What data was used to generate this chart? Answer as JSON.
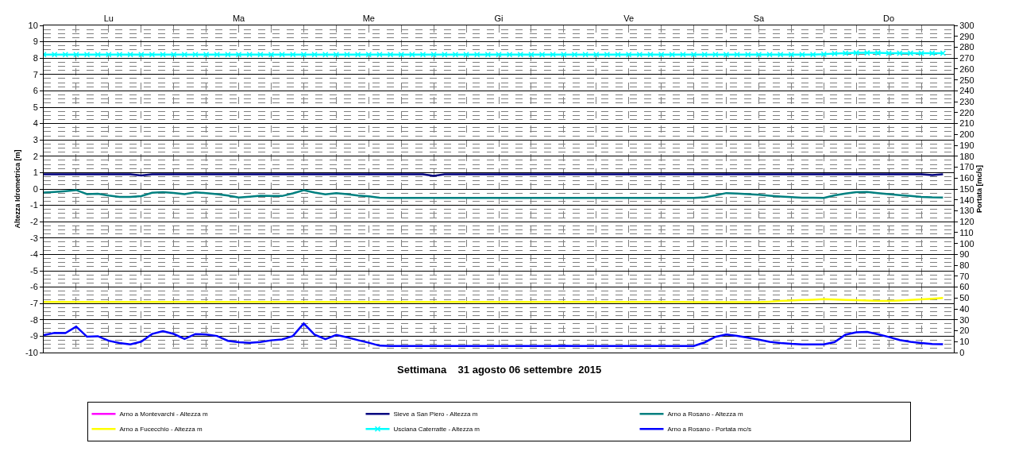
{
  "chart_data": {
    "type": "line",
    "xlabel": "Settimana    31 agosto 06 settembre  2015",
    "ylabel": "Altezza Idrometrica [m]",
    "y2label": "Portata [mc/s]",
    "categories": [
      null,
      null,
      null,
      null,
      null,
      null,
      "Lu",
      null,
      null,
      null,
      null,
      null,
      null,
      null,
      null,
      null,
      null,
      null,
      "Ma",
      null,
      null,
      null,
      null,
      null,
      null,
      null,
      null,
      null,
      null,
      null,
      "Me",
      null,
      null,
      null,
      null,
      null,
      null,
      null,
      null,
      null,
      null,
      null,
      "Gi",
      null,
      null,
      null,
      null,
      null,
      null,
      null,
      null,
      null,
      null,
      null,
      "Ve",
      null,
      null,
      null,
      null,
      null,
      null,
      null,
      null,
      null,
      null,
      null,
      "Sa",
      null,
      null,
      null,
      null,
      null,
      null,
      null,
      null,
      null,
      null,
      null,
      "Do",
      null,
      null,
      null,
      null,
      null
    ],
    "ylim": [
      -10,
      10
    ],
    "yticks": [
      -10,
      -9,
      -8,
      -7,
      -6,
      -5,
      -4,
      -3,
      -2,
      -1,
      0,
      1,
      2,
      3,
      4,
      5,
      6,
      7,
      8,
      9,
      10
    ],
    "y2lim": [
      0,
      300
    ],
    "y2ticks": [
      0,
      10,
      20,
      30,
      40,
      50,
      60,
      70,
      80,
      90,
      100,
      110,
      120,
      130,
      140,
      150,
      160,
      170,
      180,
      190,
      200,
      210,
      220,
      230,
      240,
      250,
      260,
      270,
      280,
      290,
      300
    ],
    "grid": true,
    "legend": "bottom",
    "line_style": "solid",
    "series": [
      {
        "name": "Arno a Montevarchi - Altezza m",
        "color": "#ff00ff",
        "values": [
          null,
          null,
          null,
          null,
          null,
          null,
          null,
          null,
          null,
          null,
          null,
          null,
          null,
          null,
          null,
          null,
          null,
          null,
          null,
          null,
          null,
          null,
          null,
          null,
          null,
          null,
          null,
          null,
          null,
          null,
          null,
          null,
          null,
          null,
          null,
          null,
          null,
          null,
          null,
          null,
          null,
          null,
          null,
          null,
          null,
          null,
          null,
          null,
          null,
          null,
          null,
          null,
          null,
          null,
          null,
          null,
          null,
          null,
          null,
          null,
          null,
          null,
          null,
          null,
          null,
          null,
          null,
          null,
          null,
          null,
          null,
          null,
          null,
          null,
          null,
          null,
          null,
          null,
          null,
          null,
          null,
          null,
          null,
          null
        ]
      },
      {
        "name": "Sieve a San Piero - Altezza m",
        "color": "#000080",
        "values": [
          0.9,
          0.9,
          0.9,
          0.9,
          0.9,
          0.9,
          0.9,
          0.9,
          0.9,
          0.82,
          0.9,
          0.9,
          0.9,
          0.9,
          0.9,
          0.9,
          0.9,
          0.9,
          0.9,
          0.9,
          0.9,
          0.9,
          0.9,
          0.9,
          0.9,
          0.9,
          0.9,
          0.9,
          0.9,
          0.9,
          0.9,
          0.9,
          0.9,
          0.9,
          0.9,
          0.9,
          0.8,
          0.9,
          0.9,
          0.9,
          0.9,
          0.9,
          0.9,
          0.9,
          0.9,
          0.9,
          0.9,
          0.9,
          0.9,
          0.9,
          0.9,
          0.9,
          0.9,
          0.9,
          0.9,
          0.9,
          0.9,
          0.9,
          0.9,
          0.9,
          0.9,
          0.9,
          0.9,
          0.9,
          0.9,
          0.9,
          0.9,
          0.9,
          0.9,
          0.9,
          0.9,
          0.9,
          0.9,
          0.9,
          0.9,
          0.9,
          0.9,
          0.9,
          0.9,
          0.9,
          0.9,
          0.9,
          0.85,
          0.9
        ]
      },
      {
        "name": "Arno a Rosano - Altezza m",
        "color": "#008080",
        "values": [
          -0.22,
          -0.18,
          -0.13,
          -0.07,
          -0.31,
          -0.29,
          -0.4,
          -0.48,
          -0.48,
          -0.44,
          -0.23,
          -0.19,
          -0.24,
          -0.32,
          -0.21,
          -0.25,
          -0.32,
          -0.4,
          -0.52,
          -0.47,
          -0.41,
          -0.43,
          -0.43,
          -0.27,
          -0.07,
          -0.22,
          -0.33,
          -0.25,
          -0.32,
          -0.4,
          -0.45,
          -0.53,
          -0.55,
          -0.55,
          -0.55,
          -0.55,
          -0.55,
          -0.55,
          -0.55,
          -0.55,
          -0.55,
          -0.55,
          -0.55,
          -0.55,
          -0.55,
          -0.55,
          -0.55,
          -0.55,
          -0.55,
          -0.55,
          -0.55,
          -0.55,
          -0.55,
          -0.55,
          -0.55,
          -0.55,
          -0.55,
          -0.55,
          -0.55,
          -0.55,
          -0.55,
          -0.51,
          -0.39,
          -0.25,
          -0.28,
          -0.32,
          -0.35,
          -0.41,
          -0.46,
          -0.5,
          -0.53,
          -0.54,
          -0.55,
          -0.39,
          -0.28,
          -0.2,
          -0.18,
          -0.25,
          -0.32,
          -0.38,
          -0.43,
          -0.48,
          -0.51,
          -0.52
        ]
      },
      {
        "name": "Arno a Fucecchio - Altezza m",
        "color": "#ffff00",
        "values": [
          -6.9,
          -6.9,
          -6.9,
          -6.9,
          -6.9,
          -6.9,
          -6.9,
          -6.9,
          -6.9,
          -6.9,
          -6.9,
          -6.9,
          -6.9,
          -6.9,
          -6.9,
          -6.9,
          -6.9,
          -6.9,
          -6.9,
          -6.9,
          -6.9,
          -6.9,
          -6.9,
          -6.9,
          -6.9,
          -6.9,
          -6.9,
          -6.9,
          -6.9,
          -6.9,
          -6.9,
          -6.9,
          -6.9,
          -6.9,
          -6.9,
          -6.9,
          -6.9,
          -6.9,
          -6.9,
          -6.9,
          -6.9,
          -6.9,
          -6.9,
          -6.9,
          -6.9,
          -6.9,
          -6.9,
          -6.9,
          -6.9,
          -6.9,
          -6.9,
          -6.9,
          -6.9,
          -6.9,
          -6.9,
          -6.9,
          -6.9,
          -6.9,
          -6.9,
          -6.9,
          -6.92,
          -6.92,
          -6.92,
          -6.92,
          -6.92,
          -6.92,
          -6.92,
          -6.89,
          -6.85,
          -6.82,
          -6.79,
          -6.77,
          -6.74,
          -6.76,
          -6.78,
          -6.8,
          -6.82,
          -6.84,
          -6.85,
          -6.82,
          -6.78,
          -6.75,
          -6.71,
          -6.66
        ]
      },
      {
        "name": "Usciana Caterratte - Altezza m",
        "color": "#00ffff",
        "marker": "cross",
        "values": [
          8.22,
          8.22,
          8.22,
          8.22,
          8.22,
          8.22,
          8.22,
          8.22,
          8.22,
          8.22,
          8.22,
          8.22,
          8.22,
          8.22,
          8.22,
          8.22,
          8.22,
          8.22,
          8.22,
          8.22,
          8.22,
          8.22,
          8.22,
          8.22,
          8.22,
          8.22,
          8.22,
          8.22,
          8.22,
          8.22,
          8.22,
          8.22,
          8.22,
          8.22,
          8.22,
          8.22,
          8.22,
          8.22,
          8.22,
          8.22,
          8.22,
          8.22,
          8.22,
          8.22,
          8.22,
          8.22,
          8.22,
          8.22,
          8.22,
          8.22,
          8.22,
          8.22,
          8.22,
          8.22,
          8.22,
          8.22,
          8.22,
          8.22,
          8.22,
          8.22,
          8.22,
          8.22,
          8.22,
          8.22,
          8.22,
          8.22,
          8.22,
          8.22,
          8.22,
          8.22,
          8.22,
          8.22,
          8.24,
          8.28,
          8.3,
          8.32,
          8.32,
          8.32,
          8.3,
          8.3,
          8.3,
          8.3,
          8.3,
          8.3
        ]
      },
      {
        "name": "Arno a Rosano - Portata mc/s",
        "color": "#0000ff",
        "axis": "y2",
        "values": [
          16,
          18,
          17.8,
          23.8,
          14.5,
          15,
          10.8,
          8.7,
          7.5,
          10,
          17,
          19.7,
          17.1,
          12.5,
          17,
          16.6,
          15.2,
          10.8,
          9.5,
          8.9,
          9.6,
          11.2,
          12,
          15.2,
          26.7,
          16.4,
          12.2,
          16.2,
          14,
          11.4,
          9,
          6.3,
          6,
          6,
          6,
          6,
          6,
          6,
          6,
          6,
          6,
          6,
          6,
          6,
          6,
          6,
          6,
          6,
          6.2,
          6,
          6,
          6,
          6,
          6,
          6,
          6,
          6,
          6,
          6,
          6,
          6,
          9.3,
          14.4,
          16.5,
          15.3,
          13.6,
          11.8,
          9.9,
          8.8,
          8,
          7.5,
          7.5,
          7.5,
          9.6,
          16.4,
          18.5,
          18.9,
          16.7,
          14.3,
          11.5,
          9.8,
          8.8,
          7.9,
          7.7
        ]
      }
    ]
  }
}
